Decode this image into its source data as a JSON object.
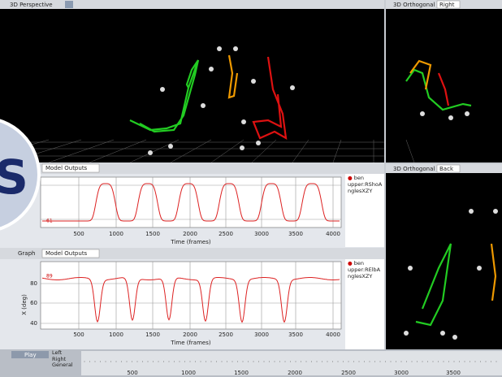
{
  "perspective_view": {
    "title": "3D Perspective"
  },
  "ortho_top": {
    "title": "3D Orthogonal",
    "view": "Right"
  },
  "ortho_bottom": {
    "title": "3D Orthogonal",
    "view": "Back"
  },
  "graph1": {
    "dropdown": "Model Outputs",
    "marker": "61",
    "x_ticks": [
      "500",
      "1000",
      "1500",
      "2000",
      "2500",
      "3000",
      "3500",
      "4000"
    ],
    "x_label": "Time (frames)",
    "legend": [
      "ben",
      "upper:RShoAnglesXZY"
    ]
  },
  "graph2": {
    "title": "Graph",
    "dropdown": "Model Outputs",
    "marker": "89",
    "y_label": "X (deg)",
    "y_ticks": [
      "80",
      "60",
      "40"
    ],
    "x_ticks": [
      "500",
      "1000",
      "1500",
      "2000",
      "2500",
      "3000",
      "3500",
      "4000"
    ],
    "x_label": "Time (frames)",
    "legend": [
      "ben",
      "upper:RElbAnglesXZY"
    ]
  },
  "timeline": {
    "play": "Play",
    "tracks": [
      "Left",
      "Right",
      "General"
    ],
    "ticks": [
      "500",
      "1000",
      "1500",
      "2000",
      "2500",
      "3000",
      "3500"
    ]
  },
  "overlay": {
    "letter": "S"
  }
}
